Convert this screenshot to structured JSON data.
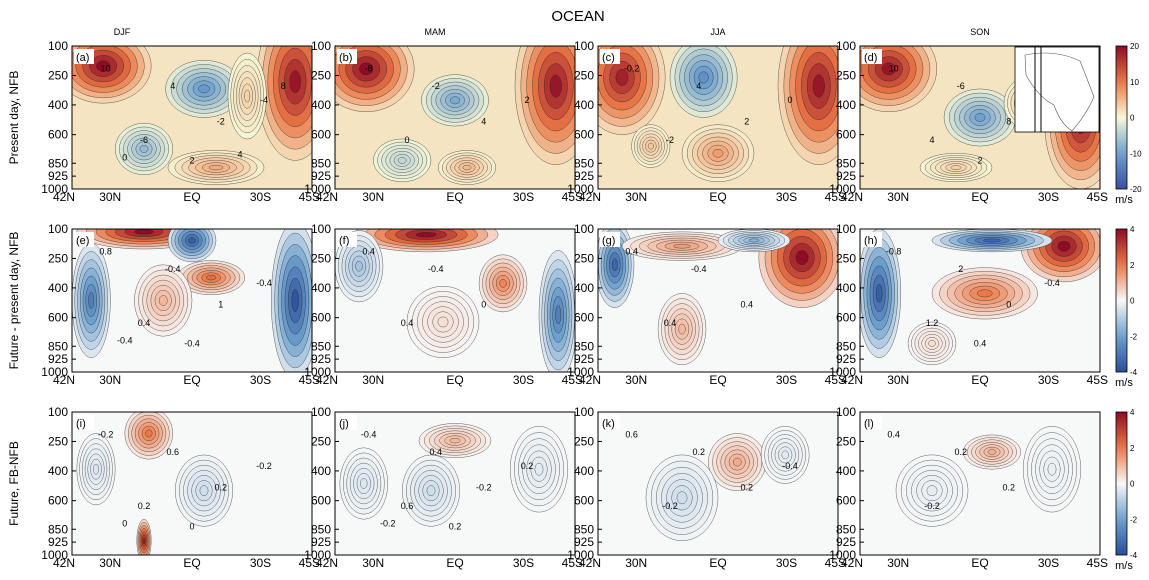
{
  "figure": {
    "title": "OCEAN",
    "seasons": [
      "DJF",
      "MAM",
      "JJA",
      "SON"
    ],
    "row_labels": [
      "Present day, NFB",
      "Future - present day, NFB",
      "Future, FB-NFB"
    ],
    "panel_letters": [
      [
        "(a)",
        "(b)",
        "(c)",
        "(d)"
      ],
      [
        "(e)",
        "(f)",
        "(g)",
        "(h)"
      ],
      [
        "(i)",
        "(j)",
        "(k)",
        "(l)"
      ]
    ],
    "y_ticks": [
      "100",
      "250",
      "400",
      "600",
      "850",
      "925",
      "1000"
    ],
    "x_ticks": [
      "42N",
      "30N",
      "EQ",
      "30S",
      "45S"
    ],
    "unit": "m/s"
  },
  "chart_data": [
    {
      "type": "heatmap",
      "row": "Present day, NFB",
      "y_axis": [
        "100",
        "250",
        "400",
        "600",
        "850",
        "925",
        "1000"
      ],
      "x_axis": [
        "42N",
        "30N",
        "EQ",
        "30S",
        "45S"
      ],
      "colorbar": {
        "ticks": [
          "20",
          "10",
          "0",
          "-10",
          "-20"
        ],
        "range": [
          -20,
          20
        ],
        "unit": "m/s"
      },
      "colors": {
        "positive": "#8e0c25",
        "zero": "#f7f8d8",
        "negative": "#3b4ea2"
      },
      "panels": [
        {
          "season": "DJF",
          "letter": "(a)",
          "contour_labels": [
            "10",
            "4",
            "-6",
            "-2",
            "-4",
            "2",
            "0",
            "4",
            "8"
          ]
        },
        {
          "season": "MAM",
          "letter": "(b)",
          "contour_labels": [
            "-8",
            "-2",
            "0",
            "4",
            "2"
          ]
        },
        {
          "season": "JJA",
          "letter": "(c)",
          "contour_labels": [
            "-0.2",
            "4",
            "-2",
            "2",
            "0"
          ]
        },
        {
          "season": "SON",
          "letter": "(d)",
          "contour_labels": [
            "10",
            "-6",
            "4",
            "8",
            "-4",
            "2"
          ]
        }
      ]
    },
    {
      "type": "heatmap",
      "row": "Future - present day, NFB",
      "y_axis": [
        "100",
        "250",
        "400",
        "600",
        "850",
        "925",
        "1000"
      ],
      "x_axis": [
        "42N",
        "30N",
        "EQ",
        "30S",
        "45S"
      ],
      "colorbar": {
        "ticks": [
          "4",
          "2",
          "0",
          "-2",
          "-4"
        ],
        "range": [
          -4,
          4
        ],
        "unit": "m/s"
      },
      "colors": {
        "positive": "#8e0c25",
        "zero": "#f7f8f8",
        "negative": "#2a4d9a"
      },
      "panels": [
        {
          "season": "DJF",
          "letter": "(e)",
          "contour_labels": [
            "0.8",
            "-0.4",
            "0.4",
            "1",
            "-0.4",
            "-0.4",
            "-0.4"
          ]
        },
        {
          "season": "MAM",
          "letter": "(f)",
          "contour_labels": [
            "0.4",
            "-0.4",
            "0.4",
            "0"
          ]
        },
        {
          "season": "JJA",
          "letter": "(g)",
          "contour_labels": [
            "0.4",
            "-0.4",
            "0.4",
            "0.4"
          ]
        },
        {
          "season": "SON",
          "letter": "(h)",
          "contour_labels": [
            "-0.8",
            "2",
            "1.2",
            "0",
            "-0.4",
            "0.4"
          ]
        }
      ]
    },
    {
      "type": "heatmap",
      "row": "Future, FB-NFB",
      "y_axis": [
        "100",
        "250",
        "400",
        "600",
        "850",
        "925",
        "1000"
      ],
      "x_axis": [
        "42N",
        "30N",
        "EQ",
        "30S",
        "45S"
      ],
      "colorbar": {
        "ticks": [
          "4",
          "2",
          "0",
          "-2",
          "-4"
        ],
        "range": [
          -4,
          4
        ],
        "unit": "m/s"
      },
      "colors": {
        "positive": "#8e0c25",
        "zero": "#f7f8f8",
        "negative": "#2a4d9a"
      },
      "panels": [
        {
          "season": "DJF",
          "letter": "(i)",
          "contour_labels": [
            "-0.2",
            "0.6",
            "0.2",
            "0.2",
            "-0.2",
            "0",
            "0"
          ]
        },
        {
          "season": "MAM",
          "letter": "(j)",
          "contour_labels": [
            "-0.4",
            "0.4",
            "0.6",
            "-0.2",
            "0.2",
            "0.2",
            "-0.2"
          ]
        },
        {
          "season": "JJA",
          "letter": "(k)",
          "contour_labels": [
            "0.6",
            "0.2",
            "-0.2",
            "0.2",
            "-0.4"
          ]
        },
        {
          "season": "SON",
          "letter": "(l)",
          "contour_labels": [
            "0.4",
            "0.2",
            "-0.2",
            "0.2"
          ]
        }
      ]
    }
  ]
}
